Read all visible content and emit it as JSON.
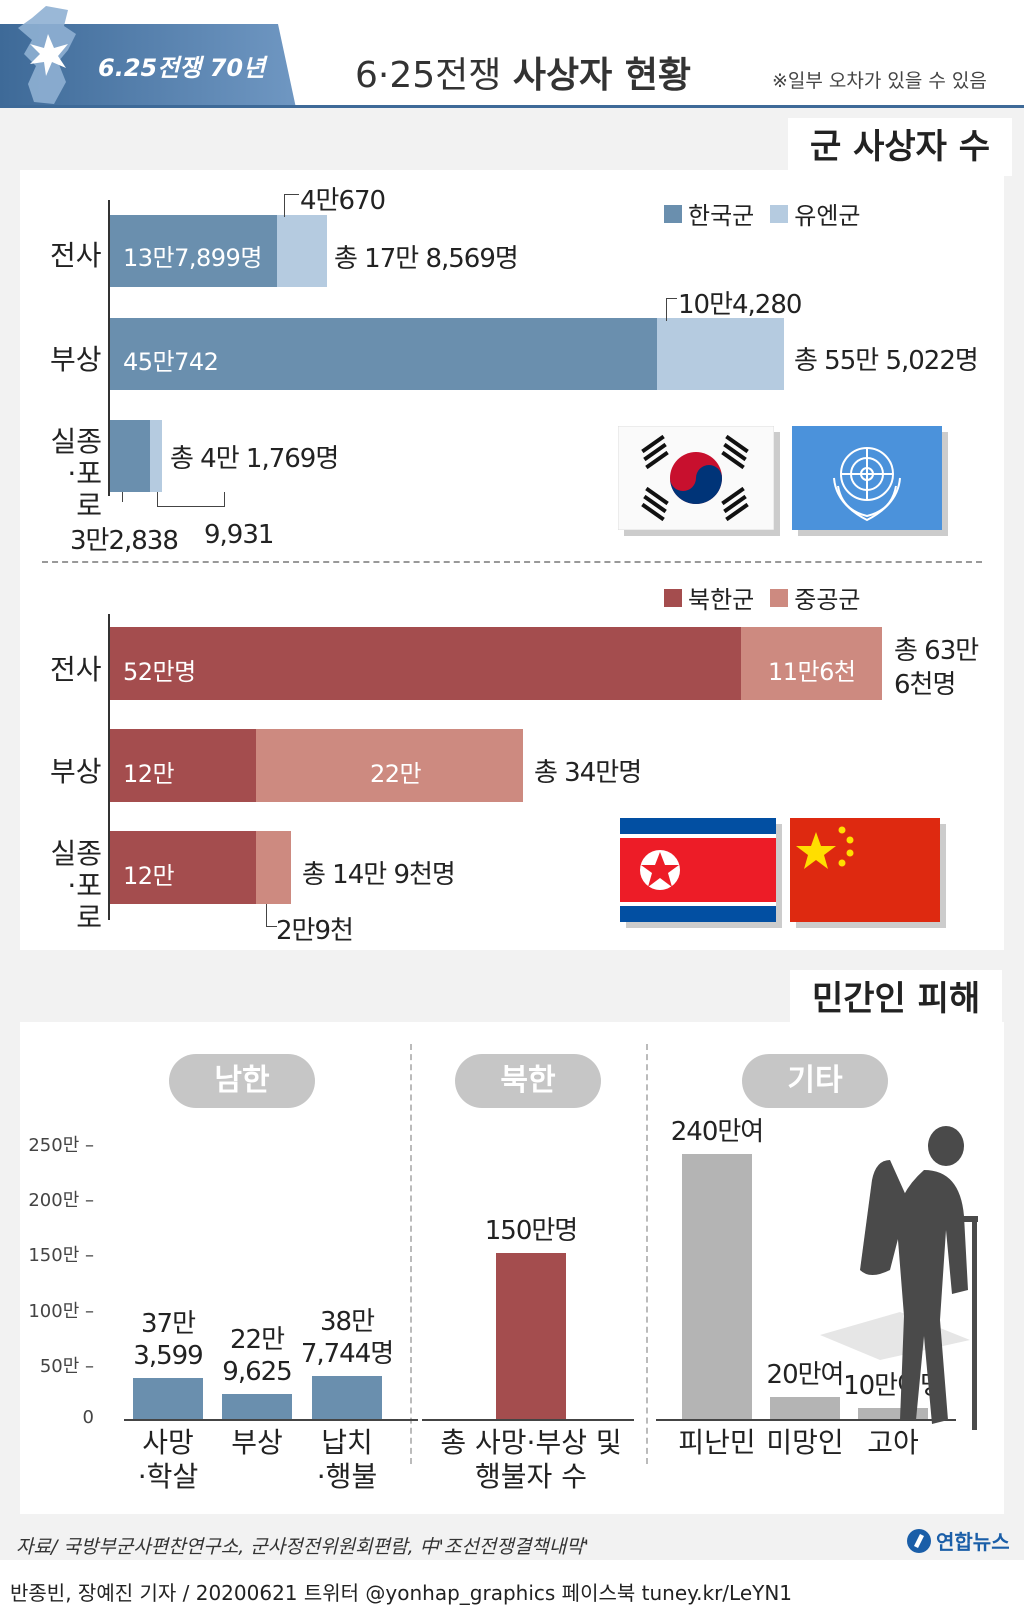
{
  "header": {
    "badge": "6.25전쟁 70년",
    "title_light": "6·25전쟁 ",
    "title_bold": "사상자 현황",
    "note": "※일부 오차가 있을 수 있음"
  },
  "military": {
    "section_title": "군 사상자 수",
    "allied": {
      "legend": [
        "한국군",
        "유엔군"
      ],
      "colors": [
        "#6a8fae",
        "#b5cbe0"
      ],
      "rows": [
        {
          "label": "전사",
          "rok": 137899,
          "un": 40670,
          "rok_label": "13만7,899명",
          "un_label": "4만670",
          "total": "총 17만 8,569명"
        },
        {
          "label": "부상",
          "rok": 450742,
          "un": 104280,
          "rok_label": "45만742",
          "un_label": "10만4,280",
          "total": "총 55만 5,022명"
        },
        {
          "label": "실종\n·포로",
          "rok": 32838,
          "un": 9931,
          "rok_label": "3만2,838",
          "un_label": "9,931",
          "total": "총 4만 1,769명"
        }
      ]
    },
    "enemy": {
      "legend": [
        "북한군",
        "중공군"
      ],
      "colors": [
        "#a44d4e",
        "#cd8a80"
      ],
      "rows": [
        {
          "label": "전사",
          "nk": 520000,
          "cn": 116000,
          "nk_label": "52만명",
          "cn_label": "11만6천",
          "total": "총 63만\n6천명"
        },
        {
          "label": "부상",
          "nk": 120000,
          "cn": 220000,
          "nk_label": "12만",
          "cn_label": "22만",
          "total": "총 34만명"
        },
        {
          "label": "실종\n·포로",
          "nk": 120000,
          "cn": 29000,
          "nk_label": "12만",
          "cn_label": "2만9천",
          "total": "총 14만 9천명"
        }
      ]
    }
  },
  "civilian": {
    "section_title": "민간인 피해",
    "groups": [
      "남한",
      "북한",
      "기타"
    ],
    "ticks": [
      "250만",
      "200만",
      "150만",
      "100만",
      "50만",
      "0"
    ],
    "tick_values": [
      2500000,
      2000000,
      1500000,
      1000000,
      500000,
      0
    ],
    "chart_data": {
      "type": "bar",
      "ylim": [
        0,
        2500000
      ],
      "bars": [
        {
          "group": "남한",
          "category": "사망\n·학살",
          "value": 373599,
          "label": "37만\n3,599",
          "color": "#6a8fae"
        },
        {
          "group": "남한",
          "category": "부상",
          "value": 229625,
          "label": "22만\n9,625",
          "color": "#6a8fae"
        },
        {
          "group": "남한",
          "category": "납치\n·행불",
          "value": 387744,
          "label": "38만\n7,744명",
          "color": "#6a8fae"
        },
        {
          "group": "북한",
          "category": "총 사망·부상 및\n행불자 수",
          "value": 1500000,
          "label": "150만명",
          "color": "#a44d4e"
        },
        {
          "group": "기타",
          "category": "피난민",
          "value": 2400000,
          "label": "240만여",
          "color": "#b4b4b4"
        },
        {
          "group": "기타",
          "category": "미망인",
          "value": 200000,
          "label": "20만여",
          "color": "#b4b4b4"
        },
        {
          "group": "기타",
          "category": "고아",
          "value": 100000,
          "label": "10만여명",
          "color": "#b4b4b4"
        }
      ]
    }
  },
  "footer": {
    "source": "자료/ 국방부군사편찬연구소, 군사정전위원회편람, 中'조선전쟁결책내막'",
    "logo": "연합뉴스",
    "credit": "반종빈, 장예진 기자 / 20200621 트위터 @yonhap_graphics  페이스북 tuney.kr/LeYN1"
  }
}
